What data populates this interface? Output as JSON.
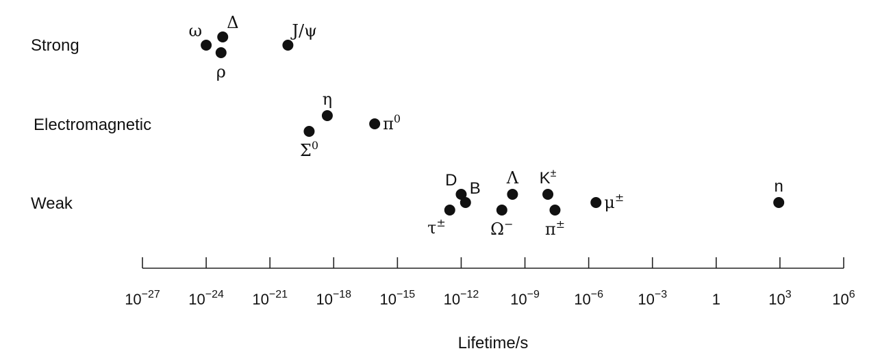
{
  "chart_data": {
    "type": "scatter",
    "title": "",
    "xlabel": "Lifetime/s",
    "ylabel": "",
    "x_scale": "log",
    "xlim": [
      1e-27,
      1000000.0
    ],
    "grid": false,
    "categories": [
      "Strong",
      "Electromagnetic",
      "Weak"
    ],
    "x_ticks": [
      {
        "value": 1e-27,
        "base": "10",
        "exp": "−27"
      },
      {
        "value": 1e-24,
        "base": "10",
        "exp": "−24"
      },
      {
        "value": 1e-21,
        "base": "10",
        "exp": "−21"
      },
      {
        "value": 1e-18,
        "base": "10",
        "exp": "−18"
      },
      {
        "value": 1e-15,
        "base": "10",
        "exp": "−15"
      },
      {
        "value": 1e-12,
        "base": "10",
        "exp": "−12"
      },
      {
        "value": 1e-09,
        "base": "10",
        "exp": "−9"
      },
      {
        "value": 1e-06,
        "base": "10",
        "exp": "−6"
      },
      {
        "value": 0.001,
        "base": "10",
        "exp": "−3"
      },
      {
        "value": 1,
        "base": "1",
        "exp": ""
      },
      {
        "value": 1000.0,
        "base": "10",
        "exp": "3"
      },
      {
        "value": 1000000.0,
        "base": "10",
        "exp": "6"
      }
    ],
    "points": [
      {
        "category": "Strong",
        "x": 1e-24,
        "sym": "ω",
        "sup": "",
        "pos": "ul"
      },
      {
        "category": "Strong",
        "x": 6e-24,
        "sym": "Δ",
        "sup": "",
        "pos": "ur"
      },
      {
        "category": "Strong",
        "x": 5e-24,
        "sym": "ρ",
        "sup": "",
        "pos": "below"
      },
      {
        "category": "Strong",
        "x": 7e-21,
        "sym": "J/ψ",
        "sup": "",
        "pos": "ur"
      },
      {
        "category": "Electromagnetic",
        "x": 5e-19,
        "sym": "η",
        "sup": "",
        "pos": "above"
      },
      {
        "category": "Electromagnetic",
        "x": 7e-20,
        "sym": "Σ",
        "sup": "0",
        "pos": "below"
      },
      {
        "category": "Electromagnetic",
        "x": 8.5e-17,
        "sym": "π",
        "sup": "0",
        "pos": "right"
      },
      {
        "category": "Weak",
        "x": 1e-12,
        "sym": "D",
        "sup": "",
        "pos": "ul"
      },
      {
        "category": "Weak",
        "x": 1.6e-12,
        "sym": "B",
        "sup": "",
        "pos": "ur"
      },
      {
        "category": "Weak",
        "x": 2.9e-13,
        "sym": "τ",
        "sup": "±",
        "pos": "ll"
      },
      {
        "category": "Weak",
        "x": 2.6e-10,
        "sym": "Λ",
        "sup": "",
        "pos": "above"
      },
      {
        "category": "Weak",
        "x": 8.2e-11,
        "sym": "Ω",
        "sup": "−",
        "pos": "below"
      },
      {
        "category": "Weak",
        "x": 1.2e-08,
        "sym": "K",
        "sup": "±",
        "pos": "above"
      },
      {
        "category": "Weak",
        "x": 2.6e-08,
        "sym": "π",
        "sup": "±",
        "pos": "below"
      },
      {
        "category": "Weak",
        "x": 2.2e-06,
        "sym": "μ",
        "sup": "±",
        "pos": "right"
      },
      {
        "category": "Weak",
        "x": 880,
        "sym": "n",
        "sup": "",
        "pos": "above"
      }
    ]
  }
}
